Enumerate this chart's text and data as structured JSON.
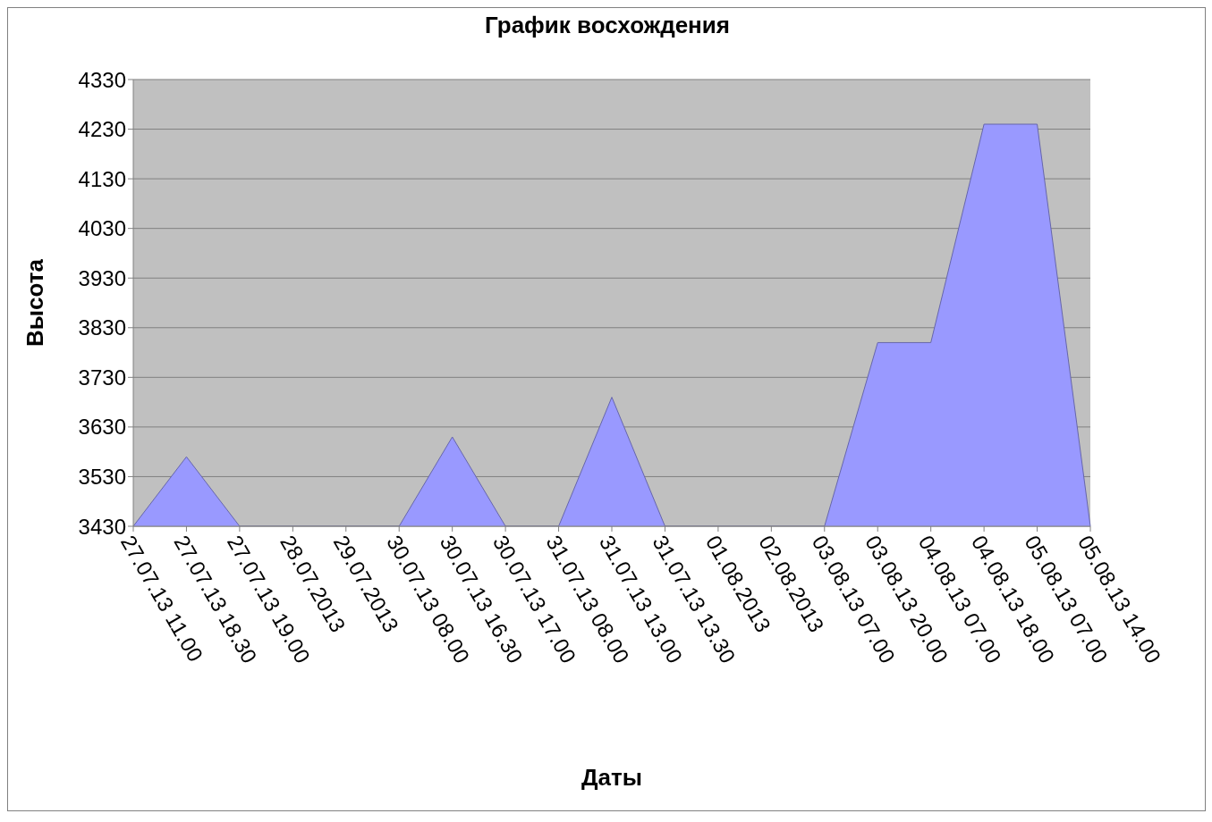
{
  "chart_data": {
    "type": "area",
    "title": "График восхождения",
    "xlabel": "Даты",
    "ylabel": "Высота",
    "categories": [
      "27.07.13 11.00",
      "27.07.13 18.30",
      "27.07.13 19.00",
      "28.07.2013",
      "29.07.2013",
      "30.07.13 08.00",
      "30.07.13 16.30",
      "30.07.13 17.00",
      "31.07.13 08.00",
      "31.07.13 13.00",
      "31.07.13 13.30",
      "01.08.2013",
      "02.08.2013",
      "03.08.13 07.00",
      "03.08.13 20.00",
      "04.08.13 07.00",
      "04.08.13 18.00",
      "05.08.13 07.00",
      "05.08.13 14.00"
    ],
    "values": [
      3430,
      3570,
      3430,
      3430,
      3430,
      3430,
      3610,
      3430,
      3430,
      3690,
      3430,
      3430,
      3430,
      3430,
      3800,
      3800,
      4240,
      4240,
      3430
    ],
    "color": "#9999ff",
    "ylim": [
      3430,
      4330
    ],
    "yticks": [
      3430,
      3530,
      3630,
      3730,
      3830,
      3930,
      4030,
      4130,
      4230,
      4330
    ],
    "grid": "y",
    "legend": false
  }
}
